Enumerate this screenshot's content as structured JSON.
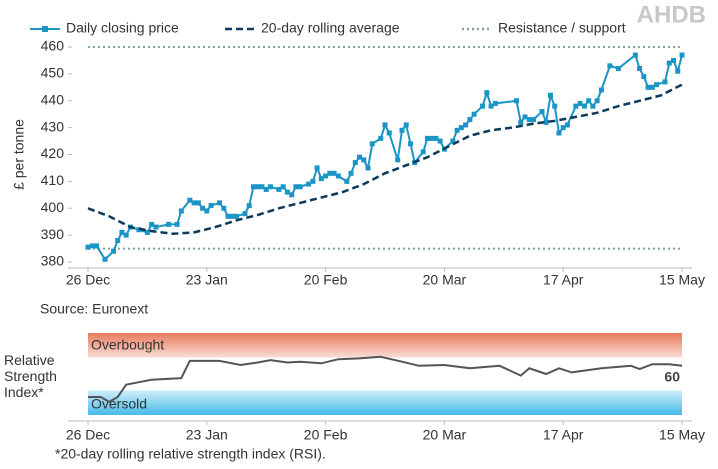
{
  "logo": "AHDB",
  "chart_data": [
    {
      "type": "line",
      "ylabel": "£ per tonne",
      "source": "Source: Euronext",
      "xlim": [
        0,
        140
      ],
      "xticks": [
        {
          "value": 0,
          "label": "26 Dec"
        },
        {
          "value": 28,
          "label": "23 Jan"
        },
        {
          "value": 56,
          "label": "20 Feb"
        },
        {
          "value": 84,
          "label": "20 Mar"
        },
        {
          "value": 112,
          "label": "17 Apr"
        },
        {
          "value": 140,
          "label": "15 May"
        }
      ],
      "ylim": [
        380,
        460
      ],
      "yticks": [
        380,
        390,
        400,
        410,
        420,
        430,
        440,
        450,
        460
      ],
      "grid": false,
      "series": [
        {
          "name": "Daily closing price",
          "color": "#1b95c5",
          "style": "solid",
          "markers": true,
          "x": [
            0,
            1,
            2,
            4,
            6,
            7,
            8,
            9,
            10,
            12,
            14,
            15,
            16,
            19,
            21,
            22,
            24,
            25,
            26,
            27,
            28,
            29,
            31,
            32,
            33,
            34,
            35,
            37,
            38,
            39,
            40,
            41,
            42,
            43,
            45,
            46,
            47,
            48,
            49,
            50,
            52,
            53,
            54,
            55,
            56,
            57,
            58,
            59,
            61,
            62,
            63,
            64,
            65,
            66,
            67,
            69,
            70,
            71,
            73,
            74,
            75,
            76,
            77,
            79,
            80,
            81,
            82,
            83,
            84,
            86,
            87,
            88,
            89,
            90,
            91,
            93,
            94,
            95,
            96,
            101,
            102,
            103,
            104,
            105,
            107,
            108,
            109,
            110,
            111,
            112,
            113,
            115,
            116,
            117,
            118,
            119,
            120,
            121,
            123,
            125,
            129,
            130,
            131,
            132,
            133,
            134,
            136,
            137,
            138,
            139,
            140
          ],
          "values": [
            385.5,
            386,
            386,
            381,
            384,
            388,
            391,
            390,
            393,
            392,
            391,
            394,
            393,
            394,
            394,
            399,
            403,
            402,
            402,
            400,
            399,
            401,
            402,
            400,
            397,
            397,
            397,
            398,
            401,
            408,
            408,
            408,
            407,
            408,
            407,
            408,
            406,
            405,
            408,
            408,
            409,
            410,
            415,
            411,
            412,
            413,
            413,
            412,
            410,
            413,
            417,
            419,
            418,
            415,
            424,
            426,
            431,
            428,
            418,
            429,
            431,
            424,
            417,
            421,
            426,
            426,
            426,
            425,
            422,
            425,
            429,
            430,
            431,
            433,
            435,
            438,
            443,
            438,
            439,
            440,
            432,
            434,
            433,
            433,
            436,
            432,
            442,
            438,
            428,
            430,
            431,
            438,
            439,
            438,
            440,
            438,
            440,
            444,
            453,
            452,
            457,
            452,
            449,
            445,
            445,
            446,
            447,
            454,
            455,
            451,
            457
          ]
        },
        {
          "name": "20-day rolling average",
          "color": "#0d3a5a",
          "style": "dashed",
          "markers": false,
          "x": [
            0,
            5,
            10,
            15,
            20,
            25,
            30,
            35,
            40,
            45,
            50,
            55,
            60,
            65,
            70,
            75,
            80,
            85,
            90,
            95,
            100,
            105,
            110,
            115,
            120,
            125,
            130,
            135,
            140
          ],
          "values": [
            400,
            397,
            393,
            391.5,
            390.5,
            391,
            393,
            395.5,
            397.5,
            400,
            402,
            404,
            406,
            409,
            413,
            416,
            419,
            423,
            427,
            429,
            430,
            431.5,
            432.5,
            434,
            435.5,
            438,
            440,
            442,
            446
          ]
        }
      ],
      "reference_lines": {
        "name": "Resistance / support",
        "color": "#7fa3a6",
        "values": [
          460,
          385
        ]
      }
    },
    {
      "type": "line",
      "ylabel": "Relative Strength Index*",
      "footnote": "*20-day rolling relative strength index (RSI).",
      "xlim": [
        0,
        140
      ],
      "xticks": [
        {
          "value": 0,
          "label": "26 Dec"
        },
        {
          "value": 28,
          "label": "23 Jan"
        },
        {
          "value": 56,
          "label": "20 Feb"
        },
        {
          "value": 84,
          "label": "20 Mar"
        },
        {
          "value": 112,
          "label": "17 Apr"
        },
        {
          "value": 140,
          "label": "15 May"
        }
      ],
      "ylim": [
        0,
        100
      ],
      "bands": [
        {
          "label": "Overbought",
          "range": [
            70,
            100
          ],
          "color": "#e8795c"
        },
        {
          "label": "Oversold",
          "range": [
            0,
            30
          ],
          "color": "#45bbea"
        }
      ],
      "series": [
        {
          "color": "#555555",
          "style": "solid",
          "markers": false,
          "end_label": true,
          "x": [
            0,
            3,
            5,
            7,
            9,
            12,
            15,
            22,
            24,
            28,
            31,
            36,
            40,
            43,
            47,
            50,
            55,
            59,
            64,
            69,
            74,
            78,
            84,
            90,
            97,
            102,
            104,
            108,
            111,
            114,
            121,
            128,
            130,
            133,
            137,
            140
          ],
          "values": [
            22,
            22,
            16,
            22,
            37,
            40,
            43,
            45,
            66,
            66,
            66,
            61,
            64,
            67,
            64,
            65,
            63,
            68,
            69,
            71,
            65,
            60,
            61,
            57,
            60,
            48,
            57,
            50,
            57,
            52,
            57,
            60,
            56,
            62,
            62,
            60
          ]
        }
      ]
    }
  ]
}
